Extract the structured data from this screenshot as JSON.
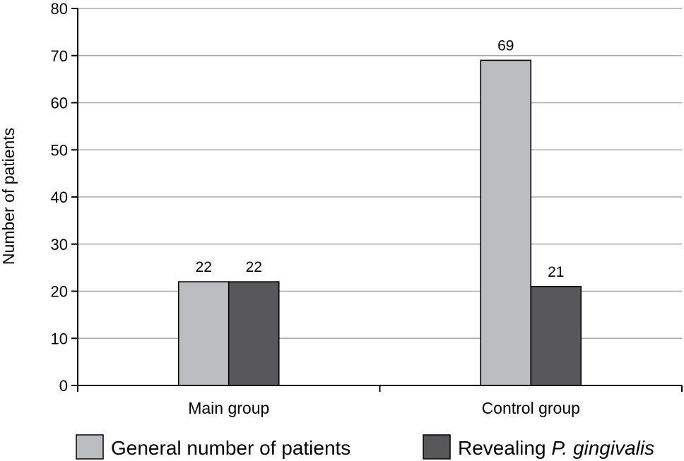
{
  "chart_data": {
    "type": "bar",
    "categories": [
      "Main group",
      "Control group"
    ],
    "series": [
      {
        "name": "General number of patients",
        "values": [
          22,
          69
        ],
        "color": "#bcbdc0"
      },
      {
        "name": "Revealing P. gingivalis",
        "values": [
          22,
          21
        ],
        "color": "#58585a"
      }
    ],
    "data_labels": [
      "22",
      "22",
      "69",
      "21"
    ],
    "ylabel": "Number of patients",
    "xlabel": "",
    "ylim": [
      0,
      80
    ],
    "yticks": [
      0,
      10,
      20,
      30,
      40,
      50,
      60,
      70,
      80
    ],
    "grid": true,
    "legend_position": "bottom"
  },
  "legend": {
    "series1_label": "General number of patients",
    "series2_prefix": "Revealing ",
    "series2_italic": "P. gingivalis"
  }
}
